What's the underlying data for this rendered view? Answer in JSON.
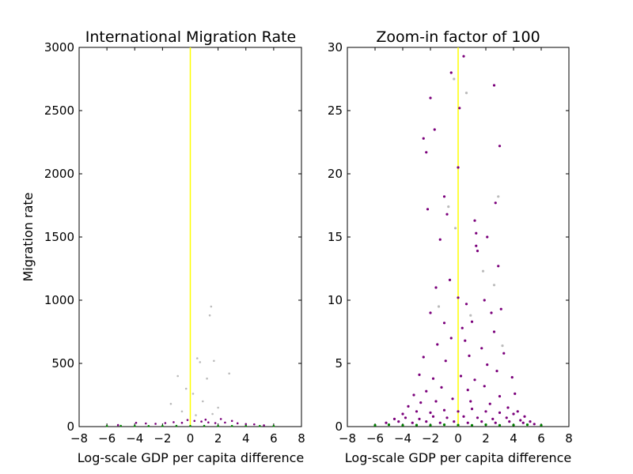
{
  "chart_data": [
    {
      "type": "scatter",
      "title": "International Migration Rate",
      "xlabel": "Log-scale GDP per capita difference",
      "ylabel": "Migration rate",
      "xlim": [
        -8,
        8
      ],
      "ylim": [
        0,
        3000
      ],
      "xticks": [
        "−8",
        "−6",
        "−4",
        "−2",
        "0",
        "2",
        "4",
        "6",
        "8"
      ],
      "yticks": [
        "0",
        "500",
        "1000",
        "1500",
        "2000",
        "2500",
        "3000"
      ],
      "grid": false,
      "reference_line": {
        "x": 0,
        "color": "#ffff00"
      },
      "series": [
        {
          "color": "#7b007b",
          "points": [
            [
              -3.9,
              30
            ],
            [
              -3.2,
              25
            ],
            [
              -2.5,
              22
            ],
            [
              -1.8,
              28
            ],
            [
              -1.2,
              35
            ],
            [
              -0.6,
              30
            ],
            [
              0.3,
              45
            ],
            [
              0.8,
              40
            ],
            [
              1.3,
              33
            ],
            [
              1.8,
              28
            ],
            [
              2.5,
              32
            ],
            [
              3.0,
              45
            ],
            [
              3.4,
              26
            ],
            [
              4.0,
              20
            ],
            [
              4.6,
              18
            ],
            [
              -5.2,
              12
            ],
            [
              5.3,
              10
            ],
            [
              -0.2,
              52
            ],
            [
              1.1,
              55
            ],
            [
              2.2,
              60
            ]
          ]
        },
        {
          "color": "#008000",
          "points": [
            [
              -6.0,
              5
            ],
            [
              -5.0,
              6
            ],
            [
              -4.0,
              5
            ],
            [
              -3.0,
              4
            ],
            [
              -2.0,
              5
            ],
            [
              -1.0,
              6
            ],
            [
              0.0,
              5
            ],
            [
              1.0,
              6
            ],
            [
              2.0,
              5
            ],
            [
              3.0,
              5
            ],
            [
              4.0,
              6
            ],
            [
              5.0,
              5
            ],
            [
              6.0,
              5
            ]
          ]
        },
        {
          "color": "#bbbbbb",
          "points": [
            [
              1.5,
              950
            ],
            [
              1.4,
              880
            ],
            [
              0.5,
              540
            ],
            [
              0.7,
              510
            ],
            [
              1.7,
              520
            ],
            [
              2.8,
              420
            ],
            [
              -0.9,
              400
            ],
            [
              1.2,
              380
            ],
            [
              -0.3,
              300
            ],
            [
              0.2,
              260
            ],
            [
              0.9,
              200
            ],
            [
              -1.4,
              180
            ],
            [
              2.0,
              150
            ],
            [
              -0.6,
              120
            ],
            [
              1.6,
              100
            ],
            [
              0.4,
              90
            ]
          ]
        }
      ]
    },
    {
      "type": "scatter",
      "title": "Zoom-in factor of 100",
      "xlabel": "Log-scale GDP per capita difference",
      "ylabel": "",
      "xlim": [
        -8,
        8
      ],
      "ylim": [
        0,
        30
      ],
      "xticks": [
        "−8",
        "−6",
        "−4",
        "−2",
        "0",
        "2",
        "4",
        "6",
        "8"
      ],
      "yticks": [
        "0",
        "5",
        "10",
        "15",
        "20",
        "25",
        "30"
      ],
      "grid": false,
      "reference_line": {
        "x": 0,
        "color": "#ffff00"
      },
      "series": [
        {
          "color": "#7b007b",
          "points": [
            [
              0.4,
              29.3
            ],
            [
              -0.5,
              28.0
            ],
            [
              2.6,
              27.0
            ],
            [
              -2.0,
              26.0
            ],
            [
              0.1,
              25.2
            ],
            [
              -1.7,
              23.5
            ],
            [
              -2.3,
              21.7
            ],
            [
              -2.5,
              22.8
            ],
            [
              3.0,
              22.2
            ],
            [
              0.0,
              20.5
            ],
            [
              -2.2,
              17.2
            ],
            [
              -1.0,
              18.2
            ],
            [
              1.2,
              16.3
            ],
            [
              2.7,
              17.7
            ],
            [
              -0.8,
              16.8
            ],
            [
              1.3,
              15.3
            ],
            [
              1.3,
              14.3
            ],
            [
              2.1,
              15.0
            ],
            [
              -1.3,
              14.8
            ],
            [
              2.9,
              12.7
            ],
            [
              -0.6,
              11.6
            ],
            [
              -1.6,
              11.0
            ],
            [
              1.4,
              13.9
            ],
            [
              0.0,
              10.2
            ],
            [
              0.6,
              9.7
            ],
            [
              3.1,
              9.3
            ],
            [
              1.9,
              10.0
            ],
            [
              -2.0,
              9.0
            ],
            [
              2.4,
              9.0
            ],
            [
              -1.0,
              8.2
            ],
            [
              0.3,
              7.8
            ],
            [
              1.0,
              8.3
            ],
            [
              2.6,
              7.5
            ],
            [
              -0.5,
              7.0
            ],
            [
              -1.5,
              6.5
            ],
            [
              0.5,
              6.8
            ],
            [
              1.7,
              6.2
            ],
            [
              3.3,
              5.8
            ],
            [
              -2.5,
              5.5
            ],
            [
              -0.9,
              5.2
            ],
            [
              0.8,
              5.6
            ],
            [
              2.1,
              4.9
            ],
            [
              2.8,
              4.4
            ],
            [
              -2.8,
              4.1
            ],
            [
              -1.8,
              3.8
            ],
            [
              0.2,
              4.0
            ],
            [
              1.2,
              3.7
            ],
            [
              3.9,
              3.9
            ],
            [
              4.1,
              2.6
            ],
            [
              -3.2,
              2.5
            ],
            [
              -2.3,
              2.8
            ],
            [
              -1.2,
              3.1
            ],
            [
              0.7,
              2.9
            ],
            [
              1.9,
              3.2
            ],
            [
              3.0,
              2.4
            ],
            [
              -3.6,
              1.6
            ],
            [
              -2.7,
              1.9
            ],
            [
              -1.6,
              2.0
            ],
            [
              -0.4,
              2.2
            ],
            [
              0.9,
              2.0
            ],
            [
              2.3,
              1.8
            ],
            [
              3.6,
              1.5
            ],
            [
              4.3,
              1.2
            ],
            [
              -4.0,
              1.0
            ],
            [
              -3.0,
              1.2
            ],
            [
              -2.0,
              1.1
            ],
            [
              -1.0,
              1.3
            ],
            [
              0.0,
              1.2
            ],
            [
              1.0,
              1.4
            ],
            [
              2.0,
              1.2
            ],
            [
              3.0,
              1.1
            ],
            [
              4.0,
              1.0
            ],
            [
              4.8,
              0.8
            ],
            [
              -4.6,
              0.6
            ],
            [
              -3.8,
              0.7
            ],
            [
              -2.8,
              0.6
            ],
            [
              -1.8,
              0.8
            ],
            [
              -0.8,
              0.7
            ],
            [
              0.4,
              0.8
            ],
            [
              1.4,
              0.7
            ],
            [
              2.5,
              0.6
            ],
            [
              3.5,
              0.7
            ],
            [
              4.5,
              0.5
            ],
            [
              5.2,
              0.4
            ],
            [
              -5.2,
              0.3
            ],
            [
              -4.3,
              0.4
            ],
            [
              -3.3,
              0.3
            ],
            [
              -2.3,
              0.4
            ],
            [
              -1.3,
              0.3
            ],
            [
              -0.3,
              0.4
            ],
            [
              0.7,
              0.3
            ],
            [
              1.7,
              0.4
            ],
            [
              2.7,
              0.3
            ],
            [
              3.7,
              0.4
            ],
            [
              4.7,
              0.3
            ],
            [
              5.5,
              0.2
            ]
          ]
        },
        {
          "color": "#008000",
          "points": [
            [
              -6.0,
              0.1
            ],
            [
              -5.0,
              0.15
            ],
            [
              -4.0,
              0.1
            ],
            [
              -3.0,
              0.12
            ],
            [
              -2.0,
              0.1
            ],
            [
              -1.0,
              0.15
            ],
            [
              0.0,
              0.12
            ],
            [
              1.0,
              0.1
            ],
            [
              2.0,
              0.15
            ],
            [
              3.0,
              0.1
            ],
            [
              4.0,
              0.12
            ],
            [
              5.0,
              0.15
            ],
            [
              6.0,
              0.1
            ]
          ]
        },
        {
          "color": "#bbbbbb",
          "points": [
            [
              -0.3,
              27.5
            ],
            [
              0.6,
              26.4
            ],
            [
              2.9,
              18.2
            ],
            [
              -0.7,
              17.4
            ],
            [
              1.8,
              12.3
            ],
            [
              2.6,
              11.2
            ],
            [
              -1.4,
              9.5
            ],
            [
              0.9,
              8.8
            ],
            [
              -0.2,
              15.7
            ],
            [
              3.2,
              6.4
            ]
          ]
        }
      ]
    }
  ]
}
